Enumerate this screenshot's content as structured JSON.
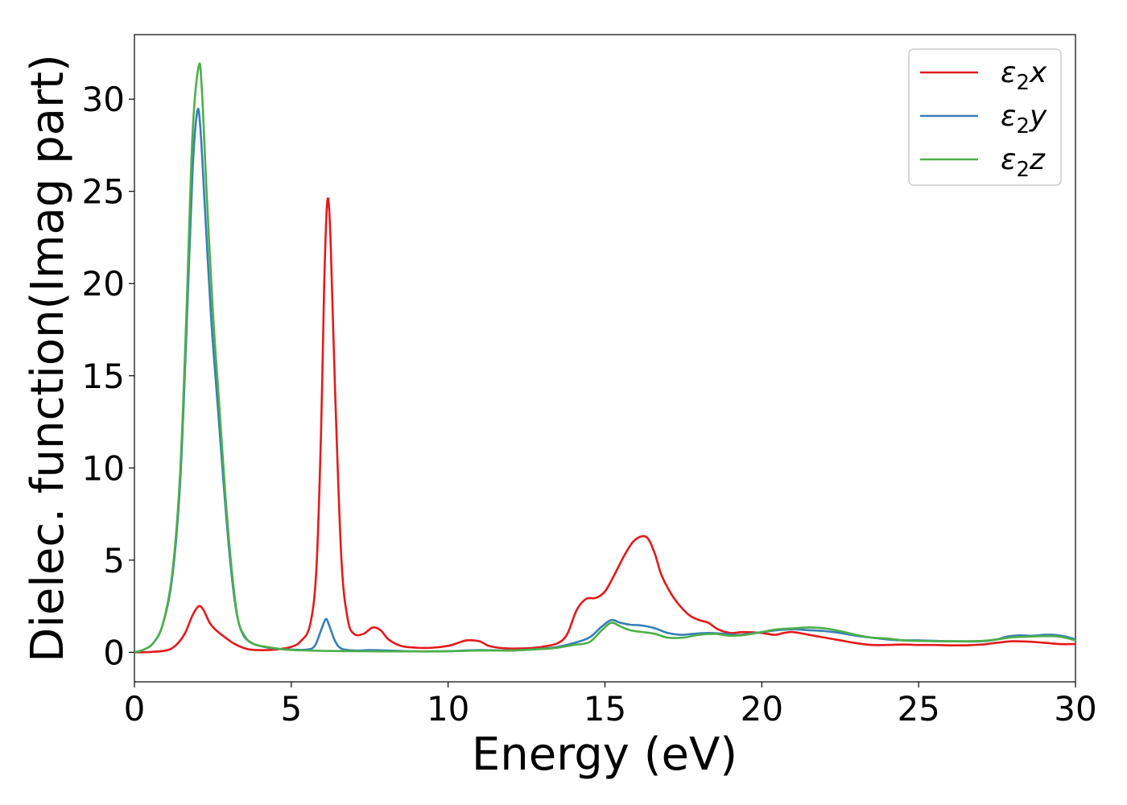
{
  "chart_data": {
    "type": "line",
    "title": "",
    "xlabel": "Energy (eV)",
    "ylabel": "Dielec. function(Imag part)",
    "xlim": [
      0,
      30
    ],
    "ylim": [
      -1.6,
      33.5
    ],
    "xticks": [
      0,
      5,
      10,
      15,
      20,
      25,
      30
    ],
    "yticks": [
      0,
      5,
      10,
      15,
      20,
      25,
      30
    ],
    "grid": false,
    "legend_position": "top-right",
    "series": [
      {
        "name": "ε₂x",
        "legend": {
          "base": "ε",
          "sub": "2",
          "suffix": "x"
        },
        "color": "#e41a1c",
        "points": [
          [
            0,
            0
          ],
          [
            0.5,
            0.02
          ],
          [
            1.0,
            0.1
          ],
          [
            1.3,
            0.35
          ],
          [
            1.6,
            1.0
          ],
          [
            1.85,
            2.0
          ],
          [
            2.05,
            2.5
          ],
          [
            2.2,
            2.3
          ],
          [
            2.4,
            1.6
          ],
          [
            2.6,
            1.2
          ],
          [
            2.9,
            0.8
          ],
          [
            3.2,
            0.45
          ],
          [
            3.6,
            0.18
          ],
          [
            4.0,
            0.12
          ],
          [
            4.5,
            0.15
          ],
          [
            5.0,
            0.3
          ],
          [
            5.3,
            0.6
          ],
          [
            5.6,
            1.5
          ],
          [
            5.8,
            4.5
          ],
          [
            5.95,
            12.0
          ],
          [
            6.05,
            20.0
          ],
          [
            6.15,
            24.5
          ],
          [
            6.25,
            22.5
          ],
          [
            6.4,
            14.0
          ],
          [
            6.6,
            5.0
          ],
          [
            6.8,
            1.8
          ],
          [
            7.0,
            1.0
          ],
          [
            7.3,
            1.0
          ],
          [
            7.6,
            1.35
          ],
          [
            7.85,
            1.2
          ],
          [
            8.1,
            0.7
          ],
          [
            8.5,
            0.35
          ],
          [
            9.0,
            0.25
          ],
          [
            9.5,
            0.25
          ],
          [
            10.0,
            0.35
          ],
          [
            10.3,
            0.5
          ],
          [
            10.6,
            0.65
          ],
          [
            11.0,
            0.6
          ],
          [
            11.3,
            0.35
          ],
          [
            11.8,
            0.22
          ],
          [
            12.5,
            0.22
          ],
          [
            13.0,
            0.3
          ],
          [
            13.5,
            0.5
          ],
          [
            13.8,
            1.0
          ],
          [
            14.1,
            2.3
          ],
          [
            14.4,
            2.9
          ],
          [
            14.7,
            2.95
          ],
          [
            15.0,
            3.3
          ],
          [
            15.3,
            4.2
          ],
          [
            15.6,
            5.2
          ],
          [
            15.9,
            6.0
          ],
          [
            16.2,
            6.3
          ],
          [
            16.4,
            6.1
          ],
          [
            16.6,
            5.3
          ],
          [
            16.8,
            4.2
          ],
          [
            17.1,
            3.2
          ],
          [
            17.4,
            2.5
          ],
          [
            17.7,
            2.0
          ],
          [
            18.0,
            1.75
          ],
          [
            18.3,
            1.6
          ],
          [
            18.6,
            1.25
          ],
          [
            19.0,
            1.05
          ],
          [
            19.4,
            1.1
          ],
          [
            20.0,
            1.05
          ],
          [
            20.4,
            0.95
          ],
          [
            20.7,
            1.05
          ],
          [
            21.0,
            1.1
          ],
          [
            21.5,
            0.95
          ],
          [
            22.0,
            0.8
          ],
          [
            22.5,
            0.65
          ],
          [
            23.0,
            0.5
          ],
          [
            23.5,
            0.4
          ],
          [
            24.0,
            0.4
          ],
          [
            24.5,
            0.42
          ],
          [
            25.0,
            0.4
          ],
          [
            25.5,
            0.4
          ],
          [
            26.0,
            0.38
          ],
          [
            26.5,
            0.38
          ],
          [
            27.0,
            0.42
          ],
          [
            27.5,
            0.52
          ],
          [
            28.0,
            0.6
          ],
          [
            28.5,
            0.58
          ],
          [
            29.0,
            0.52
          ],
          [
            29.5,
            0.45
          ],
          [
            30.0,
            0.45
          ]
        ]
      },
      {
        "name": "ε₂y",
        "legend": {
          "base": "ε",
          "sub": "2",
          "suffix": "y"
        },
        "color": "#377eb8",
        "points": [
          [
            0,
            0
          ],
          [
            0.3,
            0.15
          ],
          [
            0.6,
            0.5
          ],
          [
            0.9,
            1.5
          ],
          [
            1.2,
            4.0
          ],
          [
            1.45,
            9.0
          ],
          [
            1.65,
            17.0
          ],
          [
            1.85,
            26.0
          ],
          [
            2.0,
            29.3
          ],
          [
            2.1,
            28.5
          ],
          [
            2.25,
            24.0
          ],
          [
            2.45,
            18.0
          ],
          [
            2.65,
            13.5
          ],
          [
            2.85,
            9.0
          ],
          [
            3.05,
            5.0
          ],
          [
            3.25,
            2.2
          ],
          [
            3.45,
            1.0
          ],
          [
            3.7,
            0.55
          ],
          [
            4.0,
            0.35
          ],
          [
            4.5,
            0.2
          ],
          [
            5.0,
            0.15
          ],
          [
            5.5,
            0.15
          ],
          [
            5.75,
            0.35
          ],
          [
            5.95,
            1.2
          ],
          [
            6.1,
            1.8
          ],
          [
            6.2,
            1.5
          ],
          [
            6.4,
            0.6
          ],
          [
            6.6,
            0.2
          ],
          [
            7.0,
            0.1
          ],
          [
            7.5,
            0.12
          ],
          [
            8.0,
            0.1
          ],
          [
            9.0,
            0.05
          ],
          [
            10.0,
            0.06
          ],
          [
            11.0,
            0.12
          ],
          [
            12.0,
            0.1
          ],
          [
            13.0,
            0.2
          ],
          [
            13.5,
            0.3
          ],
          [
            14.0,
            0.5
          ],
          [
            14.5,
            0.8
          ],
          [
            14.9,
            1.4
          ],
          [
            15.2,
            1.75
          ],
          [
            15.5,
            1.6
          ],
          [
            15.8,
            1.5
          ],
          [
            16.2,
            1.45
          ],
          [
            16.6,
            1.3
          ],
          [
            17.0,
            1.05
          ],
          [
            17.4,
            0.95
          ],
          [
            17.8,
            1.0
          ],
          [
            18.3,
            1.05
          ],
          [
            18.8,
            1.0
          ],
          [
            19.3,
            0.95
          ],
          [
            20.0,
            1.1
          ],
          [
            20.5,
            1.2
          ],
          [
            21.0,
            1.25
          ],
          [
            21.5,
            1.2
          ],
          [
            22.0,
            1.15
          ],
          [
            22.5,
            1.05
          ],
          [
            23.0,
            0.9
          ],
          [
            23.5,
            0.8
          ],
          [
            24.0,
            0.7
          ],
          [
            24.5,
            0.65
          ],
          [
            25.0,
            0.65
          ],
          [
            26.0,
            0.6
          ],
          [
            27.0,
            0.6
          ],
          [
            27.5,
            0.7
          ],
          [
            27.8,
            0.85
          ],
          [
            28.2,
            0.92
          ],
          [
            28.6,
            0.9
          ],
          [
            29.0,
            0.95
          ],
          [
            29.3,
            0.95
          ],
          [
            29.7,
            0.85
          ],
          [
            30.0,
            0.7
          ]
        ]
      },
      {
        "name": "ε₂z",
        "legend": {
          "base": "ε",
          "sub": "2",
          "suffix": "z"
        },
        "color": "#4daf4a",
        "points": [
          [
            0,
            0
          ],
          [
            0.3,
            0.15
          ],
          [
            0.6,
            0.5
          ],
          [
            0.9,
            1.5
          ],
          [
            1.2,
            4.2
          ],
          [
            1.45,
            9.5
          ],
          [
            1.65,
            18.0
          ],
          [
            1.85,
            28.0
          ],
          [
            2.05,
            31.8
          ],
          [
            2.15,
            30.5
          ],
          [
            2.3,
            25.0
          ],
          [
            2.5,
            18.5
          ],
          [
            2.7,
            13.5
          ],
          [
            2.9,
            8.5
          ],
          [
            3.1,
            4.5
          ],
          [
            3.3,
            1.8
          ],
          [
            3.55,
            0.8
          ],
          [
            3.8,
            0.45
          ],
          [
            4.2,
            0.3
          ],
          [
            4.8,
            0.15
          ],
          [
            5.5,
            0.1
          ],
          [
            6.0,
            0.08
          ],
          [
            7.0,
            0.06
          ],
          [
            8.0,
            0.05
          ],
          [
            9.0,
            0.05
          ],
          [
            10.0,
            0.06
          ],
          [
            11.0,
            0.1
          ],
          [
            12.0,
            0.1
          ],
          [
            13.0,
            0.18
          ],
          [
            13.5,
            0.25
          ],
          [
            14.0,
            0.4
          ],
          [
            14.5,
            0.55
          ],
          [
            14.9,
            1.2
          ],
          [
            15.2,
            1.6
          ],
          [
            15.5,
            1.4
          ],
          [
            15.8,
            1.2
          ],
          [
            16.2,
            1.1
          ],
          [
            16.6,
            1.0
          ],
          [
            17.0,
            0.8
          ],
          [
            17.5,
            0.8
          ],
          [
            18.0,
            0.95
          ],
          [
            18.5,
            1.0
          ],
          [
            19.0,
            0.9
          ],
          [
            19.5,
            0.95
          ],
          [
            20.0,
            1.1
          ],
          [
            20.5,
            1.25
          ],
          [
            21.0,
            1.3
          ],
          [
            21.5,
            1.35
          ],
          [
            22.0,
            1.3
          ],
          [
            22.5,
            1.15
          ],
          [
            23.0,
            0.95
          ],
          [
            23.5,
            0.8
          ],
          [
            24.0,
            0.75
          ],
          [
            24.5,
            0.65
          ],
          [
            25.0,
            0.62
          ],
          [
            26.0,
            0.6
          ],
          [
            27.0,
            0.62
          ],
          [
            27.5,
            0.7
          ],
          [
            28.0,
            0.82
          ],
          [
            28.5,
            0.85
          ],
          [
            29.0,
            0.88
          ],
          [
            29.5,
            0.85
          ],
          [
            30.0,
            0.65
          ]
        ]
      }
    ]
  }
}
